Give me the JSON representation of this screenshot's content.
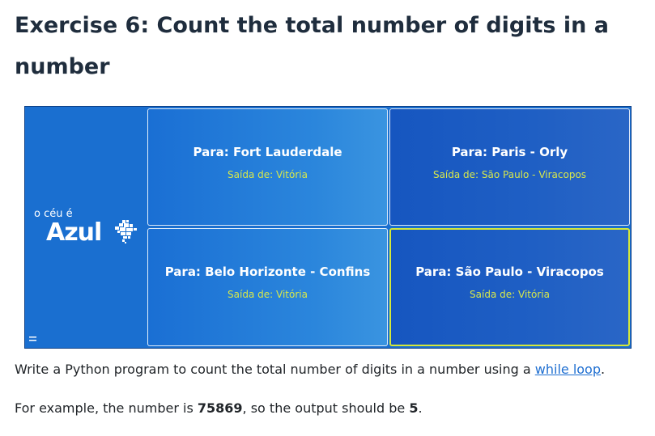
{
  "heading": "Exercise 6: Count the total number of digits in a number",
  "ad": {
    "brand": {
      "tagline": "o céu é",
      "name": "Azul",
      "logo_icon": "brazil-map-icon",
      "menu_icon": "menu-icon"
    },
    "tiles": [
      {
        "destination": "Para: Fort Lauderdale",
        "origin": "Saída de: Vitória"
      },
      {
        "destination": "Para: Paris - Orly",
        "origin": "Saída de: São Paulo - Viracopos"
      },
      {
        "destination": "Para: Belo Horizonte - Confins",
        "origin": "Saída de: Vitória"
      },
      {
        "destination": "Para: São Paulo - Viracopos",
        "origin": "Saída de: Vitória"
      }
    ],
    "colors": {
      "background": "#1a6fd0",
      "origin_text": "#d8e84a",
      "highlight_border": "#d4e83a"
    }
  },
  "description": {
    "before_link": "Write a Python program to count the total number of digits in a number using a ",
    "link": "while loop",
    "after_link": "."
  },
  "example": {
    "before_number": "For example, the number is ",
    "number": "75869",
    "middle": ", so the output should be ",
    "result": "5",
    "after": "."
  }
}
